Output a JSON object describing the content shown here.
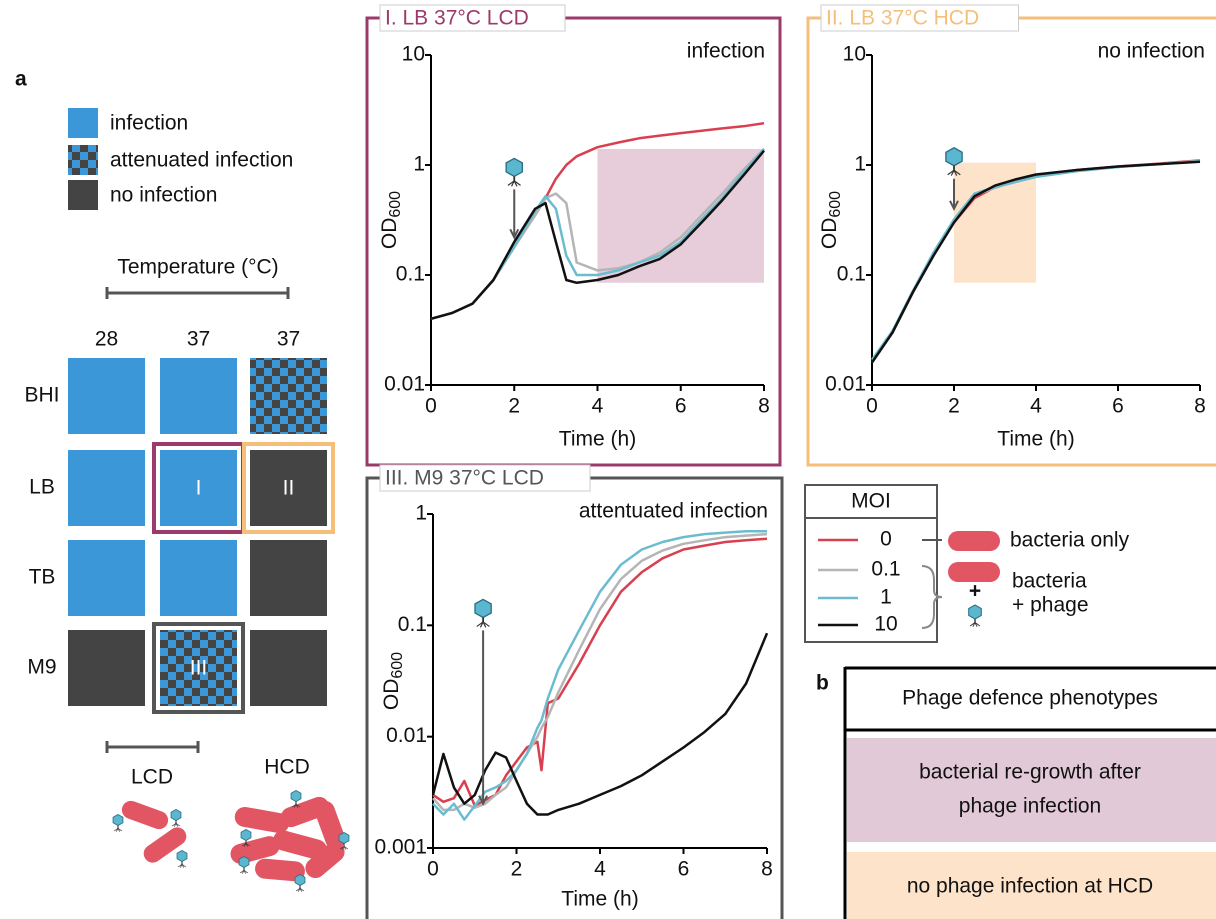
{
  "panel_a": {
    "label": "a",
    "legend": [
      {
        "label": "infection",
        "color": "#3c97d8"
      },
      {
        "label": "attenuated infection",
        "color": "#3c97d8",
        "color2": "#444444"
      },
      {
        "label": "no infection",
        "color": "#444444"
      }
    ],
    "temperature_label": "Temperature (°C)",
    "columns": [
      "28",
      "37",
      "37"
    ],
    "rows": [
      {
        "label": "BHI",
        "cells": [
          {
            "state": "infection"
          },
          {
            "state": "infection"
          },
          {
            "state": "attenuated infection"
          }
        ]
      },
      {
        "label": "LB",
        "cells": [
          {
            "state": "infection"
          },
          {
            "state": "infection",
            "label": "I",
            "frame": "#9b3a6b"
          },
          {
            "state": "no infection",
            "label": "II",
            "frame": "#f5bf7a"
          }
        ]
      },
      {
        "label": "TB",
        "cells": [
          {
            "state": "infection"
          },
          {
            "state": "infection"
          },
          {
            "state": "no infection"
          }
        ]
      },
      {
        "label": "M9",
        "cells": [
          {
            "state": "no infection"
          },
          {
            "state": "attenuated infection",
            "label": "III",
            "frame": "#555555"
          },
          {
            "state": "no infection"
          }
        ]
      }
    ],
    "lcd_label": "LCD",
    "hcd_label": "HCD"
  },
  "chart_data": [
    {
      "type": "line",
      "title": "I. LB 37°C LCD",
      "annotation": "infection",
      "frame_color": "#9b3a6b",
      "xlabel": "Time (h)",
      "ylabel": "OD",
      "ylabel_sub": "600",
      "x": [
        0,
        0.5,
        1,
        1.5,
        2,
        2.5,
        2.75,
        3,
        3.25,
        3.5,
        4,
        4.5,
        5,
        5.5,
        6,
        6.5,
        7,
        7.5,
        8
      ],
      "xlim": [
        0,
        8
      ],
      "xticks": [
        0,
        2,
        4,
        6,
        8
      ],
      "ylim": [
        0.01,
        10
      ],
      "yticks": [
        0.01,
        0.1,
        1,
        10
      ],
      "log_y": true,
      "shade": {
        "xlim": [
          4,
          8
        ],
        "ylim": [
          0.085,
          1.4
        ],
        "color": "#e6cdd9"
      },
      "arrow": {
        "x": 2,
        "y_from": 0.6,
        "y_to": 0.22
      },
      "series": [
        {
          "name": "0",
          "color": "#d9404f",
          "values": [
            0.04,
            0.045,
            0.055,
            0.09,
            0.18,
            0.35,
            0.5,
            0.75,
            1.0,
            1.2,
            1.45,
            1.6,
            1.75,
            1.85,
            1.95,
            2.05,
            2.15,
            2.25,
            2.4
          ]
        },
        {
          "name": "0.1",
          "color": "#b5b5b5",
          "values": [
            0.04,
            0.045,
            0.055,
            0.09,
            0.18,
            0.35,
            0.5,
            0.55,
            0.45,
            0.13,
            0.11,
            0.115,
            0.13,
            0.16,
            0.22,
            0.35,
            0.55,
            0.9,
            1.4
          ]
        },
        {
          "name": "1",
          "color": "#6cbcd0",
          "values": [
            0.04,
            0.045,
            0.055,
            0.09,
            0.18,
            0.38,
            0.52,
            0.4,
            0.15,
            0.1,
            0.1,
            0.11,
            0.13,
            0.15,
            0.2,
            0.32,
            0.5,
            0.85,
            1.4
          ]
        },
        {
          "name": "10",
          "color": "#111111",
          "values": [
            0.04,
            0.045,
            0.055,
            0.09,
            0.2,
            0.4,
            0.45,
            0.2,
            0.09,
            0.085,
            0.09,
            0.1,
            0.12,
            0.14,
            0.19,
            0.3,
            0.48,
            0.8,
            1.35
          ]
        }
      ]
    },
    {
      "type": "line",
      "title": "II. LB 37°C HCD",
      "annotation": "no infection",
      "frame_color": "#f5bf7a",
      "xlabel": "Time (h)",
      "ylabel": "OD",
      "ylabel_sub": "600",
      "x": [
        0,
        0.5,
        1,
        1.5,
        2,
        2.5,
        3,
        3.5,
        4,
        5,
        6,
        7,
        8
      ],
      "xlim": [
        0,
        8
      ],
      "xticks": [
        0,
        2,
        4,
        6,
        8
      ],
      "ylim": [
        0.01,
        10
      ],
      "yticks": [
        0.01,
        0.1,
        1,
        10
      ],
      "log_y": true,
      "shade": {
        "xlim": [
          2,
          4
        ],
        "ylim": [
          0.085,
          1.05
        ],
        "color": "#fde3c9"
      },
      "arrow": {
        "x": 2,
        "y_from": 0.75,
        "y_to": 0.4
      },
      "series": [
        {
          "name": "0",
          "color": "#d9404f",
          "values": [
            0.016,
            0.03,
            0.07,
            0.15,
            0.3,
            0.5,
            0.63,
            0.72,
            0.8,
            0.9,
            0.97,
            1.03,
            1.1
          ]
        },
        {
          "name": "0.1",
          "color": "#b5b5b5",
          "values": [
            0.016,
            0.03,
            0.07,
            0.15,
            0.31,
            0.53,
            0.62,
            0.71,
            0.79,
            0.89,
            0.96,
            1.02,
            1.09
          ]
        },
        {
          "name": "1",
          "color": "#6cbcd0",
          "values": [
            0.017,
            0.031,
            0.072,
            0.16,
            0.32,
            0.55,
            0.63,
            0.7,
            0.78,
            0.88,
            0.96,
            1.02,
            1.08
          ]
        },
        {
          "name": "10",
          "color": "#111111",
          "values": [
            0.016,
            0.03,
            0.07,
            0.15,
            0.3,
            0.52,
            0.65,
            0.74,
            0.82,
            0.9,
            0.97,
            1.02,
            1.07
          ]
        }
      ]
    },
    {
      "type": "line",
      "title": "III. M9 37°C LCD",
      "annotation": "attentuated infection",
      "frame_color": "#555555",
      "xlabel": "Time (h)",
      "ylabel": "OD",
      "ylabel_sub": "600",
      "x": [
        0,
        0.25,
        0.5,
        0.75,
        1,
        1.25,
        1.5,
        1.75,
        2,
        2.25,
        2.5,
        2.6,
        2.75,
        3,
        3.5,
        4,
        4.5,
        5,
        5.5,
        6,
        6.5,
        7,
        7.5,
        8
      ],
      "xlim": [
        0,
        8
      ],
      "xticks": [
        0,
        2,
        4,
        6,
        8
      ],
      "ylim": [
        0.001,
        1
      ],
      "yticks": [
        0.001,
        0.01,
        0.1,
        1
      ],
      "log_y": true,
      "arrow": {
        "x": 1.2,
        "y_from": 0.09,
        "y_to": 0.0025
      },
      "series": [
        {
          "name": "0",
          "color": "#d9404f",
          "values": [
            0.003,
            0.0026,
            0.0028,
            0.004,
            0.0024,
            0.0027,
            0.003,
            0.0045,
            0.006,
            0.008,
            0.009,
            0.005,
            0.02,
            0.022,
            0.045,
            0.1,
            0.2,
            0.3,
            0.4,
            0.48,
            0.52,
            0.56,
            0.58,
            0.6
          ]
        },
        {
          "name": "0.1",
          "color": "#b5b5b5",
          "values": [
            0.0028,
            0.0022,
            0.0022,
            0.0025,
            0.0023,
            0.0025,
            0.003,
            0.0035,
            0.005,
            0.007,
            0.01,
            0.012,
            0.015,
            0.025,
            0.06,
            0.14,
            0.26,
            0.38,
            0.47,
            0.54,
            0.58,
            0.62,
            0.64,
            0.66
          ]
        },
        {
          "name": "1",
          "color": "#6cbcd0",
          "values": [
            0.0025,
            0.002,
            0.0025,
            0.0018,
            0.0024,
            0.0032,
            0.0035,
            0.004,
            0.005,
            0.007,
            0.012,
            0.014,
            0.022,
            0.04,
            0.09,
            0.2,
            0.35,
            0.48,
            0.56,
            0.62,
            0.66,
            0.68,
            0.7,
            0.7
          ]
        },
        {
          "name": "10",
          "color": "#111111",
          "values": [
            0.003,
            0.007,
            0.0035,
            0.0025,
            0.003,
            0.005,
            0.0072,
            0.0065,
            0.004,
            0.0025,
            0.002,
            0.002,
            0.002,
            0.0022,
            0.0025,
            0.003,
            0.0036,
            0.0045,
            0.006,
            0.008,
            0.011,
            0.016,
            0.03,
            0.085
          ]
        }
      ]
    }
  ],
  "moi_legend": {
    "title": "MOI",
    "single_note": "bacteria only",
    "combo_note": [
      "bacteria",
      "+ phage"
    ],
    "plus": "+"
  },
  "panel_b": {
    "label": "b",
    "header": "Phage defence phenotypes",
    "rows": [
      {
        "lines": [
          "bacterial re-growth after",
          "phage infection"
        ],
        "color": "#e2c9d7"
      },
      {
        "lines": [
          "no phage infection at HCD"
        ],
        "color": "#fde3c9"
      }
    ]
  }
}
